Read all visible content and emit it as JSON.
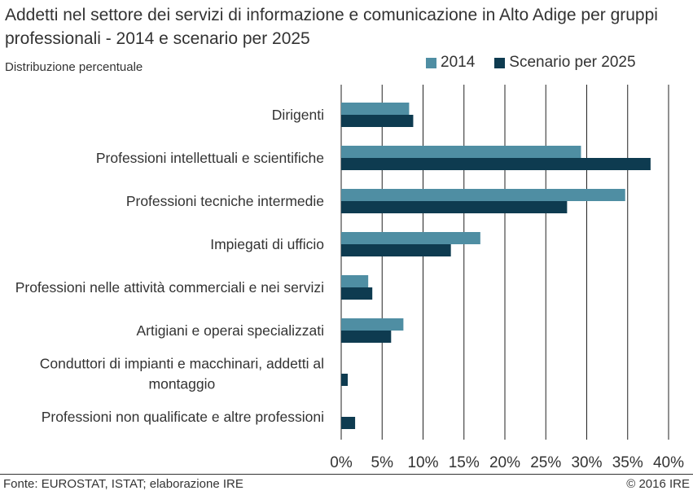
{
  "chart_data": {
    "type": "bar",
    "orientation": "horizontal",
    "title": "Addetti nel settore dei servizi di informazione e comunicazione in Alto Adige per gruppi professionali - 2014 e scenario per 2025",
    "subtitle": "Distribuzione percentuale",
    "categories": [
      "Dirigenti",
      "Professioni intellettuali e scientifiche",
      "Professioni tecniche intermedie",
      "Impiegati di ufficio",
      "Professioni nelle attività commerciali e nei servizi",
      "Artigiani e operai specializzati",
      "Conduttori di impianti e macchinari, addetti al montaggio",
      "Professioni non qualificate e altre professioni"
    ],
    "series": [
      {
        "name": "2014",
        "color": "#4f8ea3",
        "values": [
          8.3,
          29.3,
          34.7,
          17.0,
          3.3,
          7.6,
          0.0,
          0.0
        ]
      },
      {
        "name": "Scenario per 2025",
        "color": "#0e3b50",
        "values": [
          8.8,
          37.8,
          27.6,
          13.4,
          3.8,
          6.1,
          0.8,
          1.7
        ]
      }
    ],
    "xlim": [
      0,
      40
    ],
    "xticks": [
      "0%",
      "5%",
      "10%",
      "15%",
      "20%",
      "25%",
      "30%",
      "35%",
      "40%"
    ],
    "grid": "vertical",
    "legend_position": "top-right"
  },
  "footer": {
    "source": "Fonte: EUROSTAT, ISTAT; elaborazione IRE",
    "copyright": "© 2016 IRE"
  }
}
